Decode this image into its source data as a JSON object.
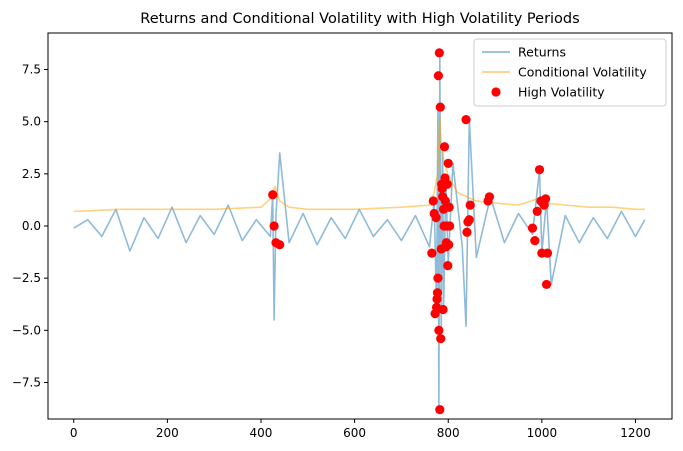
{
  "chart_data": {
    "type": "line",
    "title": "Returns and Conditional Volatility with High Volatility Periods",
    "xlabel": "",
    "ylabel": "",
    "xlim": [
      -55,
      1278
    ],
    "ylim": [
      -9.25,
      9.25
    ],
    "xticks": [
      0,
      200,
      400,
      600,
      800,
      1000,
      1200
    ],
    "xtick_labels": [
      "0",
      "200",
      "400",
      "600",
      "800",
      "1000",
      "1200"
    ],
    "yticks": [
      -7.5,
      -5.0,
      -2.5,
      0.0,
      2.5,
      5.0,
      7.5
    ],
    "ytick_labels": [
      "−7.5",
      "−5.0",
      "−2.5",
      "0.0",
      "2.5",
      "5.0",
      "7.5"
    ],
    "grid": false,
    "legend_position": "upper-right",
    "series": [
      {
        "name": "Returns",
        "kind": "line",
        "color": "#1f77b4",
        "alpha": 0.5,
        "x": [
          0,
          30,
          60,
          90,
          120,
          150,
          180,
          210,
          240,
          270,
          300,
          330,
          360,
          390,
          420,
          425,
          428,
          432,
          440,
          460,
          490,
          520,
          550,
          580,
          610,
          640,
          670,
          700,
          730,
          760,
          770,
          775,
          778,
          780,
          782,
          785,
          788,
          790,
          795,
          800,
          810,
          830,
          838,
          845,
          860,
          890,
          920,
          950,
          980,
          995,
          1000,
          1010,
          1020,
          1050,
          1080,
          1110,
          1140,
          1170,
          1200,
          1220
        ],
        "y": [
          -0.1,
          0.3,
          -0.5,
          0.8,
          -1.2,
          0.4,
          -0.6,
          0.9,
          -0.8,
          0.5,
          -0.4,
          1.0,
          -0.7,
          0.3,
          -0.5,
          1.5,
          -4.5,
          0.5,
          3.5,
          -0.8,
          0.6,
          -0.9,
          0.4,
          -0.6,
          0.8,
          -0.5,
          0.3,
          -0.7,
          0.5,
          -1.0,
          1.2,
          -4.0,
          5.7,
          -8.8,
          8.3,
          -5.0,
          3.8,
          -4.0,
          2.2,
          -1.8,
          3.0,
          -1.0,
          -4.8,
          5.1,
          -1.5,
          1.4,
          -0.8,
          0.6,
          -0.4,
          2.7,
          -1.3,
          1.3,
          -2.8,
          0.5,
          -0.8,
          0.4,
          -0.6,
          0.7,
          -0.5,
          0.3
        ]
      },
      {
        "name": "Conditional Volatility",
        "kind": "line",
        "color": "orange",
        "alpha": 0.5,
        "x": [
          0,
          100,
          200,
          300,
          400,
          420,
          430,
          440,
          460,
          500,
          600,
          700,
          760,
          770,
          778,
          782,
          785,
          790,
          800,
          820,
          840,
          860,
          900,
          950,
          990,
          1000,
          1010,
          1050,
          1100,
          1150,
          1200,
          1220
        ],
        "y": [
          0.7,
          0.8,
          0.8,
          0.8,
          0.9,
          1.3,
          1.9,
          1.2,
          0.9,
          0.8,
          0.8,
          0.9,
          1.0,
          1.6,
          2.6,
          5.3,
          3.8,
          3.2,
          2.4,
          1.6,
          1.4,
          1.2,
          1.1,
          1.0,
          1.3,
          1.2,
          1.1,
          1.0,
          0.9,
          0.9,
          0.8,
          0.8
        ]
      },
      {
        "name": "High Volatility",
        "kind": "scatter",
        "color": "#ff0000",
        "x": [
          425,
          428,
          432,
          440,
          765,
          768,
          770,
          772,
          774,
          775,
          776,
          777,
          778,
          779,
          780,
          781,
          782,
          783,
          784,
          785,
          786,
          787,
          788,
          789,
          790,
          791,
          792,
          793,
          794,
          795,
          796,
          797,
          798,
          799,
          800,
          801,
          802,
          803,
          838,
          840,
          842,
          845,
          847,
          885,
          888,
          980,
          985,
          990,
          995,
          998,
          1000,
          1002,
          1005,
          1008,
          1010,
          1012
        ],
        "y": [
          1.5,
          0.0,
          -0.8,
          -0.9,
          -1.3,
          1.2,
          0.6,
          -4.2,
          0.4,
          -3.9,
          -3.5,
          -3.2,
          -2.5,
          7.2,
          -5.0,
          8.3,
          -8.8,
          5.7,
          -5.4,
          -1.1,
          2.0,
          1.8,
          1.4,
          -4.0,
          0.8,
          0.0,
          3.8,
          2.3,
          1.2,
          -1.0,
          -0.8,
          0.0,
          2.0,
          -1.9,
          3.0,
          -0.9,
          0.9,
          0.0,
          5.1,
          -0.3,
          0.2,
          0.3,
          1.0,
          1.2,
          1.4,
          -0.1,
          -0.7,
          0.7,
          2.7,
          1.2,
          -1.3,
          1.1,
          1.0,
          1.3,
          -2.8,
          -1.3
        ]
      }
    ]
  }
}
